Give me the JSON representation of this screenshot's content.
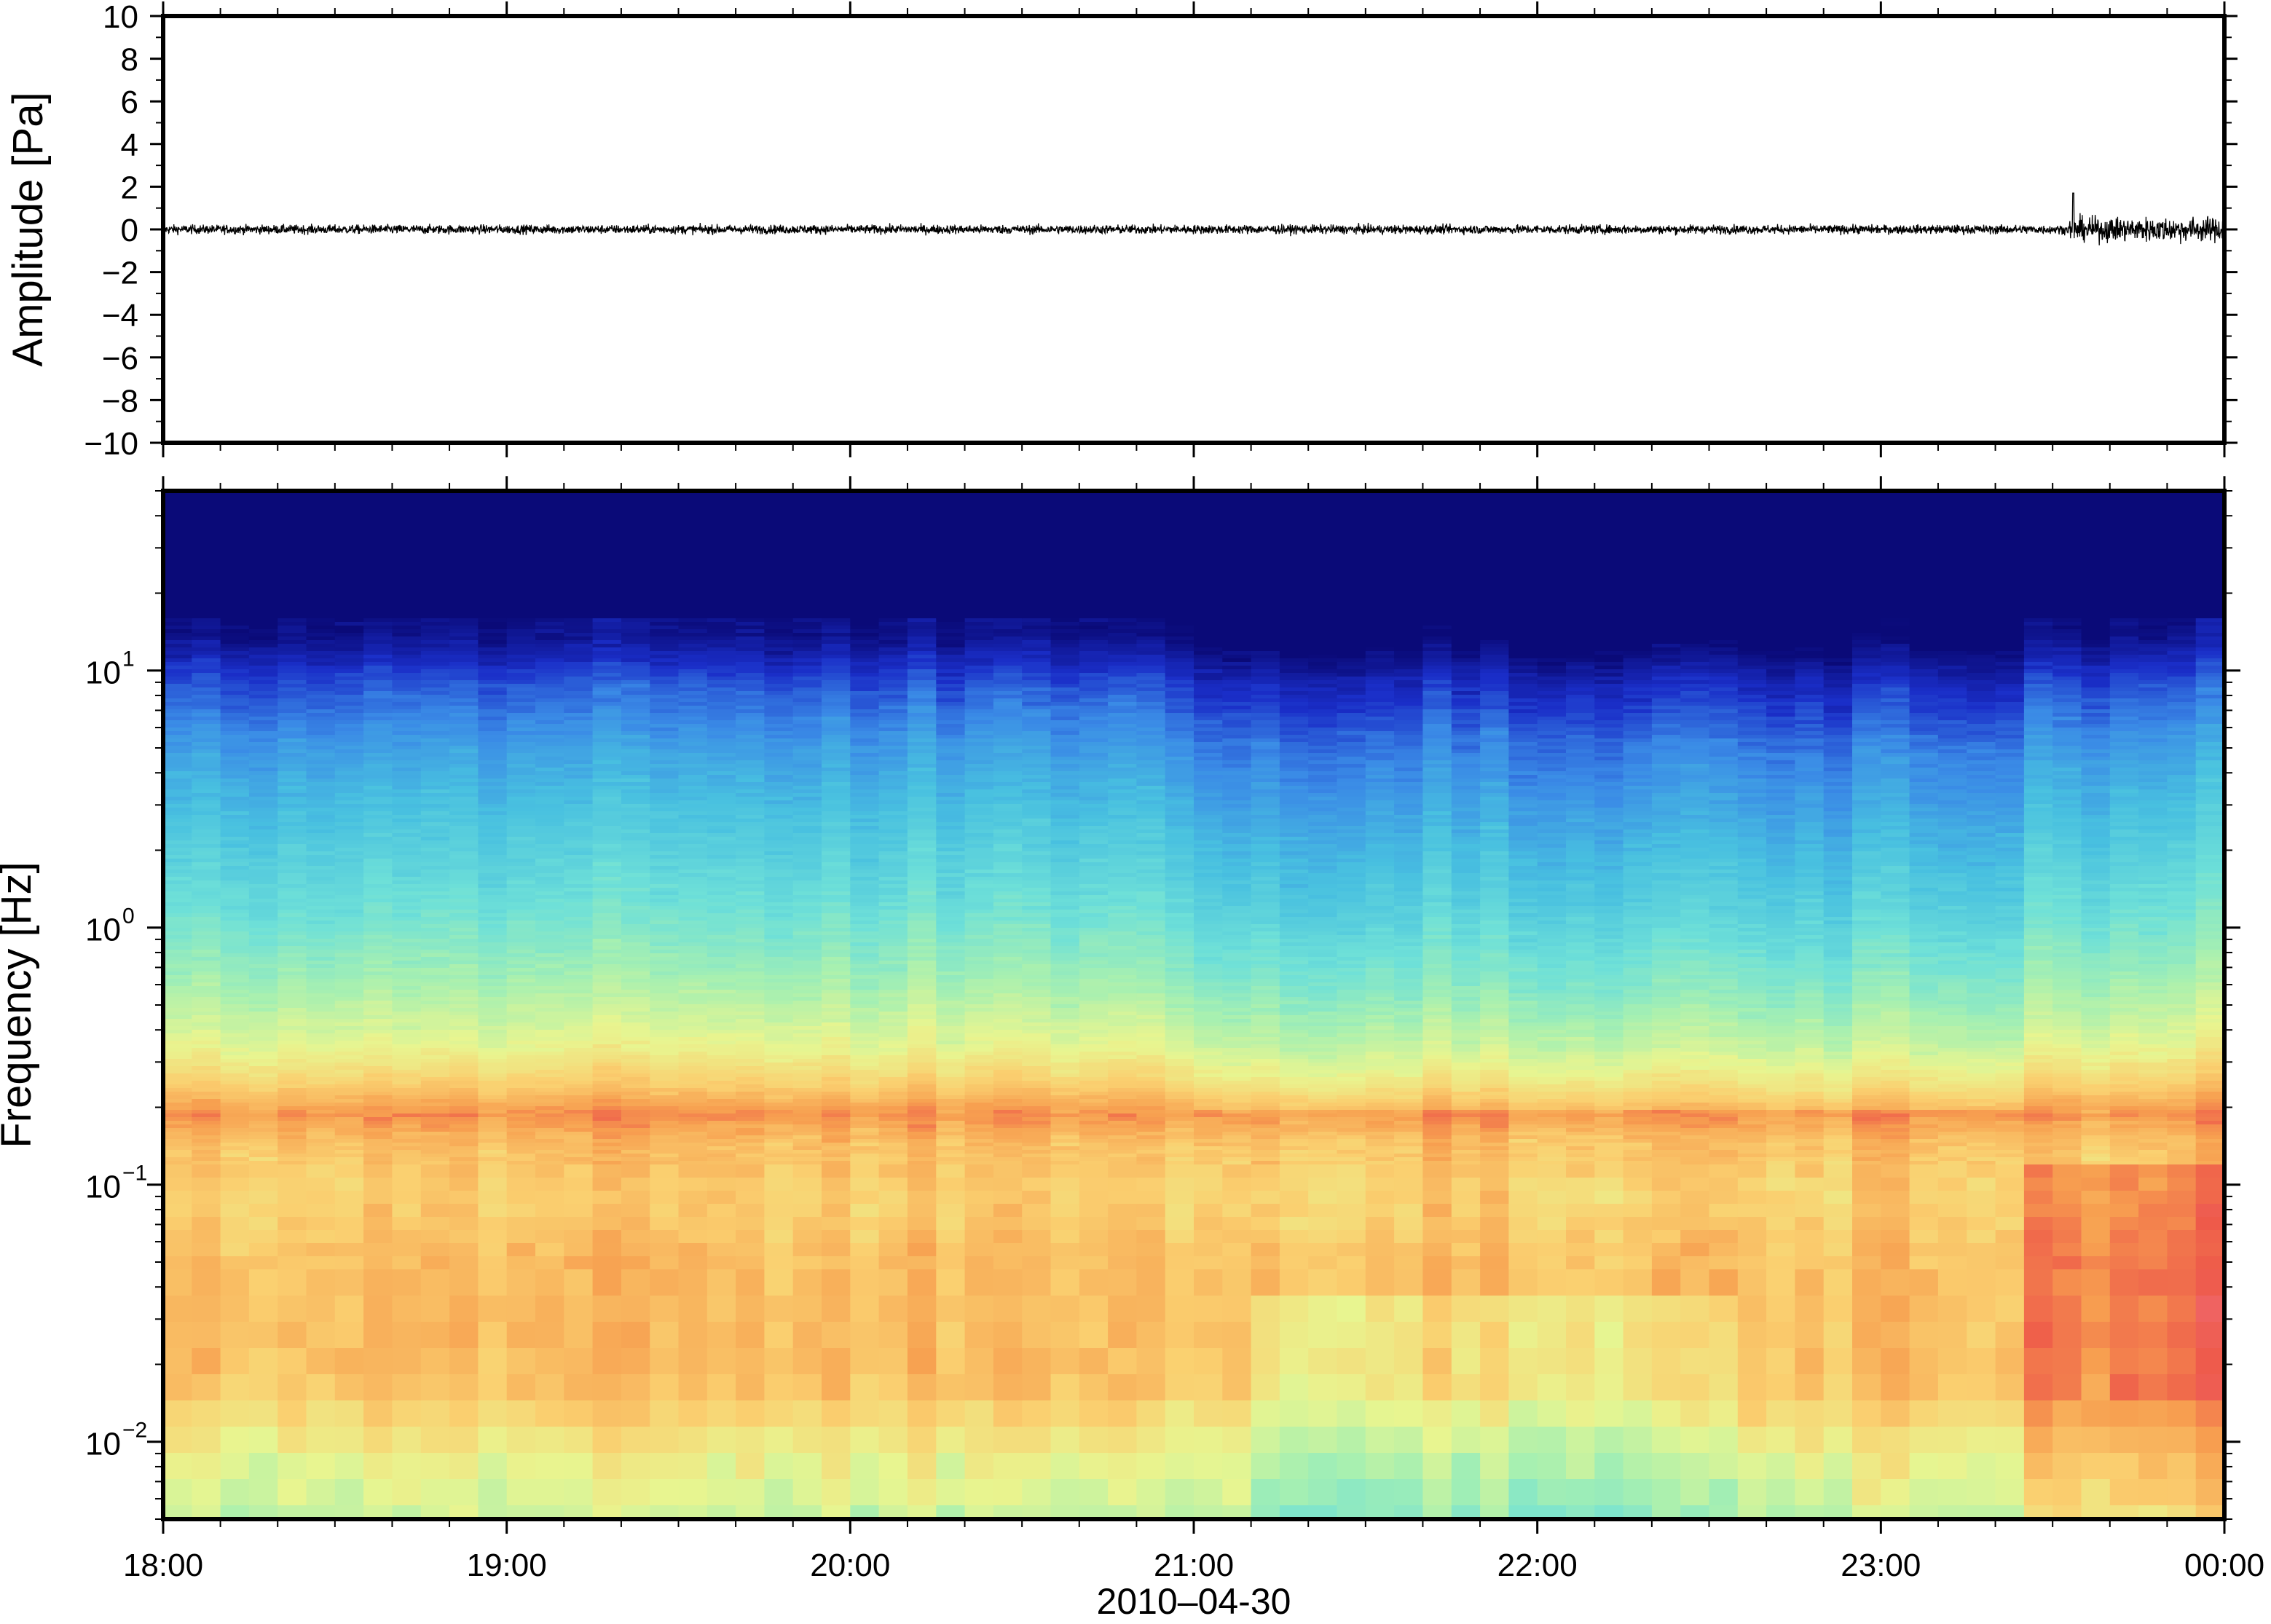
{
  "chart_data": [
    {
      "type": "line",
      "ylabel": "Amplitude [Pa]",
      "ylim": [
        -10,
        10
      ],
      "yticks": [
        10,
        8,
        6,
        4,
        2,
        0,
        -2,
        -4,
        -6,
        -8,
        -10
      ],
      "ytick_labels": [
        "10",
        "8",
        "6",
        "4",
        "2",
        "0",
        "−2",
        "−4",
        "−6",
        "−8",
        "−10"
      ],
      "xlim_hours": [
        18,
        24
      ],
      "series": [
        {
          "description_color": "#000000",
          "segments": [
            {
              "from_hour": 18.0,
              "to_hour": 23.55,
              "amplitude": 0.45
            },
            {
              "from_hour": 23.55,
              "to_hour": 24.0,
              "amplitude": 1.2
            }
          ],
          "peak": {
            "hour": 23.56,
            "value": 1.7
          }
        }
      ],
      "grid": false
    },
    {
      "type": "heatmap",
      "xlabel": "2010‒04‑30",
      "ylabel": "Frequency [Hz]",
      "yscale": "log",
      "ylim": [
        0.005,
        50
      ],
      "ytick_labels": [
        {
          "value": 10,
          "base": "10",
          "exp": "1"
        },
        {
          "value": 1,
          "base": "10",
          "exp": "0"
        },
        {
          "value": 0.1,
          "base": "10",
          "exp": "−1"
        },
        {
          "value": 0.01,
          "base": "10",
          "exp": "−2"
        }
      ],
      "x_tick_labels": [
        "18:00",
        "19:00",
        "20:00",
        "21:00",
        "22:00",
        "23:00",
        "00:00"
      ],
      "colormap": [
        "#6ee0d8",
        "#a8f0b0",
        "#e8f590",
        "#fad070",
        "#f7a050",
        "#ee5a4a",
        "#f07080",
        "#0a0a78",
        "#1a2ec8",
        "#3a8ae6",
        "#48c0e0"
      ],
      "rows": [
        {
          "fmax": 50,
          "fmin": 13,
          "level": 0.0
        },
        {
          "fmax": 13,
          "fmin": 7,
          "level": 0.12
        },
        {
          "fmax": 7,
          "fmin": 3,
          "level": 0.28
        },
        {
          "fmax": 3,
          "fmin": 1,
          "level": 0.42
        },
        {
          "fmax": 1,
          "fmin": 0.35,
          "level": 0.55
        },
        {
          "fmax": 0.35,
          "fmin": 0.22,
          "level": 0.7
        },
        {
          "fmax": 0.22,
          "fmin": 0.15,
          "level": 0.82
        },
        {
          "fmax": 0.15,
          "fmin": 0.05,
          "level": 0.74
        },
        {
          "fmax": 0.05,
          "fmin": 0.015,
          "level": 0.76
        },
        {
          "fmax": 0.015,
          "fmin": 0.005,
          "level": 0.58
        }
      ]
    }
  ]
}
